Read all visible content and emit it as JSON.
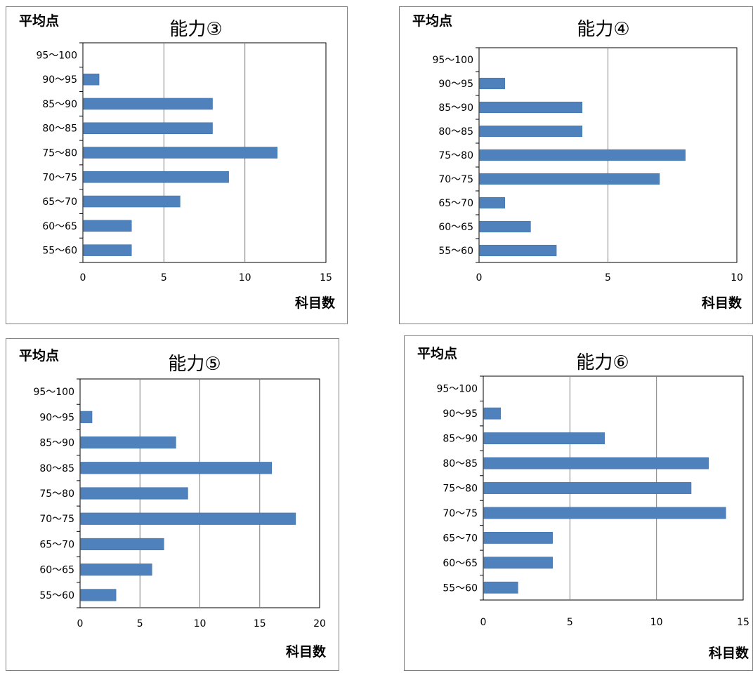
{
  "chart_data": [
    {
      "type": "bar",
      "orientation": "horizontal",
      "title": "能力③",
      "ylabel": "平均点",
      "xlabel": "科目数",
      "categories": [
        "95～100",
        "90～95",
        "85～90",
        "80～85",
        "75～80",
        "70～75",
        "65～70",
        "60～65",
        "55～60"
      ],
      "values": [
        0,
        1,
        8,
        8,
        12,
        9,
        6,
        3,
        3
      ],
      "xlim": [
        0,
        15
      ],
      "xticks": [
        0,
        5,
        10,
        15
      ],
      "grid": true,
      "bar_color": "#4f81bd"
    },
    {
      "type": "bar",
      "orientation": "horizontal",
      "title": "能力④",
      "ylabel": "平均点",
      "xlabel": "科目数",
      "categories": [
        "95～100",
        "90～95",
        "85～90",
        "80～85",
        "75～80",
        "70～75",
        "65～70",
        "60～65",
        "55～60"
      ],
      "values": [
        0,
        1,
        4,
        4,
        8,
        7,
        1,
        2,
        3
      ],
      "xlim": [
        0,
        10
      ],
      "xticks": [
        0,
        5,
        10
      ],
      "grid": true,
      "bar_color": "#4f81bd"
    },
    {
      "type": "bar",
      "orientation": "horizontal",
      "title": "能力⑤",
      "ylabel": "平均点",
      "xlabel": "科目数",
      "categories": [
        "95～100",
        "90～95",
        "85～90",
        "80～85",
        "75～80",
        "70～75",
        "65～70",
        "60～65",
        "55～60"
      ],
      "values": [
        0,
        1,
        8,
        16,
        9,
        18,
        7,
        6,
        3
      ],
      "xlim": [
        0,
        20
      ],
      "xticks": [
        0,
        5,
        10,
        15,
        20
      ],
      "grid": true,
      "bar_color": "#4f81bd"
    },
    {
      "type": "bar",
      "orientation": "horizontal",
      "title": "能力⑥",
      "ylabel": "平均点",
      "xlabel": "科目数",
      "categories": [
        "95～100",
        "90～95",
        "85～90",
        "80～85",
        "75～80",
        "70～75",
        "65～70",
        "60～65",
        "55～60"
      ],
      "values": [
        0,
        1,
        7,
        13,
        12,
        14,
        4,
        4,
        2
      ],
      "xlim": [
        0,
        15
      ],
      "xticks": [
        0,
        5,
        10,
        15
      ],
      "grid": true,
      "bar_color": "#4f81bd"
    }
  ]
}
